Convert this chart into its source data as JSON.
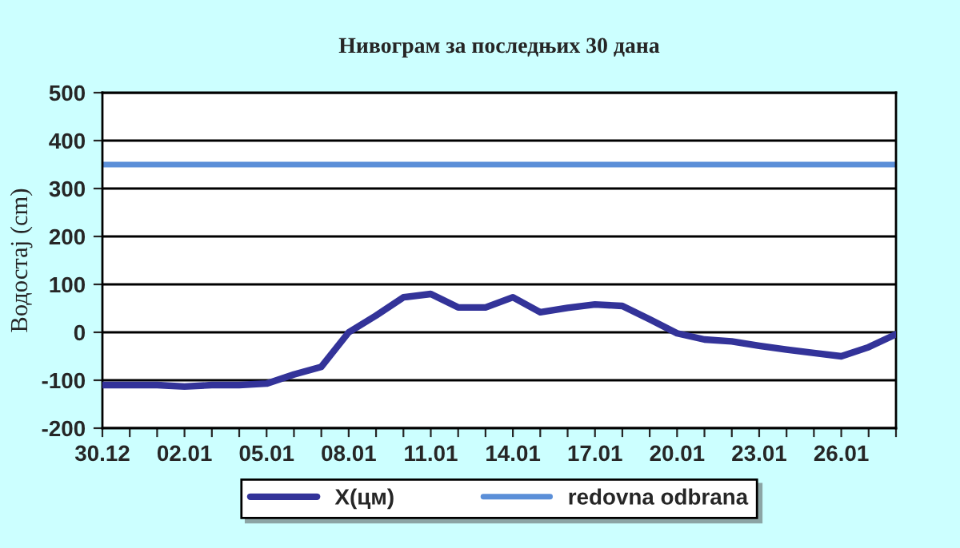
{
  "chart_data": {
    "type": "line",
    "title": "Нивограм за последњих 30 дана",
    "ylabel": "Водостај (cm)",
    "categories": [
      "30.12",
      null,
      null,
      "02.01",
      null,
      null,
      "05.01",
      null,
      null,
      "08.01",
      null,
      null,
      "11.01",
      null,
      null,
      "14.01",
      null,
      null,
      "17.01",
      null,
      null,
      "20.01",
      null,
      null,
      "23.01",
      null,
      null,
      "26.01",
      null,
      null
    ],
    "series": [
      {
        "name": "X(цм)",
        "color": "#333399",
        "values": [
          -110,
          -110,
          -110,
          -113,
          -110,
          -110,
          -107,
          -88,
          -72,
          0,
          35,
          73,
          80,
          52,
          52,
          73,
          42,
          51,
          58,
          55,
          27,
          -2,
          -15,
          -19,
          -28,
          -36,
          -43,
          -50,
          -31,
          -4
        ]
      }
    ],
    "ref_lines": [
      {
        "axis": "y",
        "value": 350,
        "label": "redovna odbrana",
        "color": "#5b8fd8",
        "line_style": "solid"
      }
    ],
    "ylim": [
      -200,
      500
    ],
    "yticks": [
      -200,
      -100,
      0,
      100,
      200,
      300,
      400,
      500
    ],
    "grid": "y",
    "legend": "bottom",
    "marker": "none",
    "line_style": "solid"
  }
}
